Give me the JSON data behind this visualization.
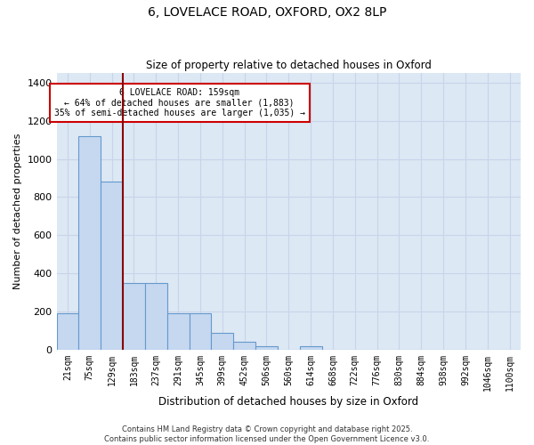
{
  "title_line1": "6, LOVELACE ROAD, OXFORD, OX2 8LP",
  "title_line2": "Size of property relative to detached houses in Oxford",
  "xlabel": "Distribution of detached houses by size in Oxford",
  "ylabel": "Number of detached properties",
  "background_color": "#dde8f5",
  "bar_color": "#c5d8f0",
  "bar_edge_color": "#6699cc",
  "categories": [
    "21sqm",
    "75sqm",
    "129sqm",
    "183sqm",
    "237sqm",
    "291sqm",
    "345sqm",
    "399sqm",
    "452sqm",
    "506sqm",
    "560sqm",
    "614sqm",
    "668sqm",
    "722sqm",
    "776sqm",
    "830sqm",
    "884sqm",
    "938sqm",
    "992sqm",
    "1046sqm",
    "1100sqm"
  ],
  "values": [
    190,
    1120,
    880,
    350,
    350,
    190,
    190,
    90,
    40,
    20,
    0,
    20,
    0,
    0,
    0,
    0,
    0,
    0,
    0,
    0,
    0
  ],
  "ylim": [
    0,
    1450
  ],
  "yticks": [
    0,
    200,
    400,
    600,
    800,
    1000,
    1200,
    1400
  ],
  "property_line_x": 2.5,
  "annotation_title": "6 LOVELACE ROAD: 159sqm",
  "annotation_line1": "← 64% of detached houses are smaller (1,883)",
  "annotation_line2": "35% of semi-detached houses are larger (1,035) →",
  "annotation_box_facecolor": "#ffffff",
  "annotation_box_edgecolor": "#cc0000",
  "vline_color": "#8b0000",
  "grid_color": "#c8d4e8",
  "footnote1": "Contains HM Land Registry data © Crown copyright and database right 2025.",
  "footnote2": "Contains public sector information licensed under the Open Government Licence v3.0."
}
